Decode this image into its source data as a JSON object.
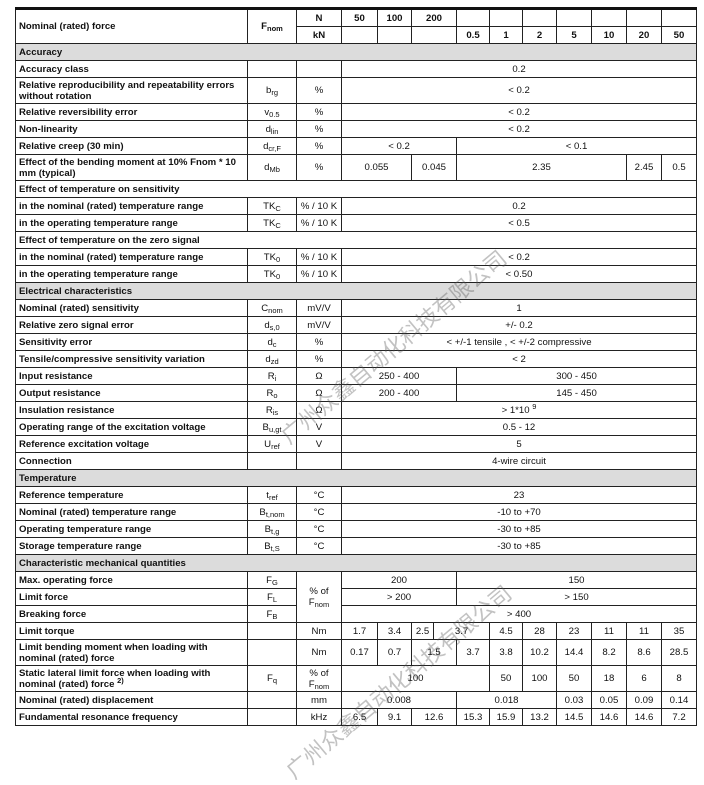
{
  "header": {
    "label": "Nominal (rated) force",
    "sym": "F",
    "sub": "nom",
    "unit_n": "N",
    "unit_kn": "kN",
    "n_values": [
      "50",
      "100",
      "200"
    ],
    "kn_values": [
      "0.5",
      "1",
      "2",
      "5",
      "10",
      "20",
      "50"
    ]
  },
  "watermark": "广州众鑫自动化科技有限公司",
  "sections": [
    {
      "title": "Accuracy",
      "rows": [
        {
          "label": "Accuracy class",
          "sym": "",
          "sub": "",
          "unit": "",
          "cells": [
            {
              "v": "0.2",
              "span": 11
            }
          ]
        },
        {
          "label": "Relative reproducibility and repeatability errors without rotation",
          "tall": true,
          "sym": "b",
          "sub": "rg",
          "unit": "%",
          "cells": [
            {
              "v": "< 0.2",
              "span": 11
            }
          ]
        },
        {
          "label": "Relative reversibility error",
          "sym": "v",
          "sub": "0.5",
          "unit": "%",
          "cells": [
            {
              "v": "< 0.2",
              "span": 11
            }
          ]
        },
        {
          "label": "Non-linearity",
          "sym": "d",
          "sub": "lin",
          "unit": "%",
          "cells": [
            {
              "v": "< 0.2",
              "span": 11
            }
          ]
        },
        {
          "label": "Relative creep (30 min)",
          "sym": "d",
          "sub": "cr,F",
          "unit": "%",
          "cells": [
            {
              "v": "< 0.2",
              "span": 4
            },
            {
              "v": "< 0.1",
              "span": 7
            }
          ]
        },
        {
          "label": "Effect of the bending moment at 10% Fnom * 10 mm (typical)",
          "tall": true,
          "sym": "d",
          "sub": "Mb",
          "unit": "%",
          "cells": [
            {
              "v": "0.055",
              "span": 2
            },
            {
              "v": "0.045",
              "span": 2
            },
            {
              "v": "2.35",
              "span": 5
            },
            {
              "v": "2.45",
              "span": 1
            },
            {
              "v": "0.5",
              "span": 1
            }
          ]
        }
      ]
    },
    {
      "title": "Effect of temperature on sensitivity",
      "plain": true,
      "rows": [
        {
          "label": "in the nominal (rated) temperature range",
          "sym": "TK",
          "sub": "C",
          "unit": "% / 10 K",
          "cells": [
            {
              "v": "0.2",
              "span": 11
            }
          ]
        },
        {
          "label": "in the operating temperature range",
          "sym": "TK",
          "sub": "C",
          "unit": "% / 10 K",
          "cells": [
            {
              "v": "< 0.5",
              "span": 11
            }
          ]
        }
      ]
    },
    {
      "title": "Effect of temperature on the zero signal",
      "plain": true,
      "rows": [
        {
          "label": "in the nominal (rated) temperature range",
          "sym": "TK",
          "sub": "0",
          "unit": "% / 10 K",
          "cells": [
            {
              "v": "< 0.2",
              "span": 11
            }
          ]
        },
        {
          "label": "in the operating temperature range",
          "sym": "TK",
          "sub": "0",
          "unit": "% / 10 K",
          "cells": [
            {
              "v": "< 0.50",
              "span": 11
            }
          ]
        }
      ]
    },
    {
      "title": "Electrical characteristics",
      "rows": [
        {
          "label": "Nominal (rated) sensitivity",
          "sym": "C",
          "sub": "nom",
          "unit": "mV/V",
          "cells": [
            {
              "v": "1",
              "span": 11
            }
          ]
        },
        {
          "label": "Relative zero signal error",
          "sym": "d",
          "sub": "s,0",
          "unit": "mV/V",
          "cells": [
            {
              "v": "+/- 0.2",
              "span": 11
            }
          ]
        },
        {
          "label": "Sensitivity error",
          "sym": "d",
          "sub": "c",
          "unit": "%",
          "cells": [
            {
              "v": "< +/-1 tensile , < +/-2 compressive",
              "span": 11
            }
          ]
        },
        {
          "label": "Tensile/compressive sensitivity variation",
          "sym": "d",
          "sub": "zd",
          "unit": "%",
          "cells": [
            {
              "v": "< 2",
              "span": 11
            }
          ]
        },
        {
          "label": "Input resistance",
          "sym": "R",
          "sub": "i",
          "unit": "Ω",
          "cells": [
            {
              "v": "250 - 400",
              "span": 4
            },
            {
              "v": "300 - 450",
              "span": 7
            }
          ]
        },
        {
          "label": "Output resistance",
          "sym": "R",
          "sub": "o",
          "unit": "Ω",
          "cells": [
            {
              "v": "200 - 400",
              "span": 4
            },
            {
              "v": "145 - 450",
              "span": 7
            }
          ]
        },
        {
          "label": "Insulation resistance",
          "sym": "R",
          "sub": "is",
          "unit": "Ω",
          "cells": [
            {
              "v": "> 1*10",
              "sup": "9",
              "span": 11
            }
          ]
        },
        {
          "label": "Operating range of the excitation voltage",
          "sym": "B",
          "sub": "u,gt",
          "unit": "V",
          "cells": [
            {
              "v": "0.5 - 12",
              "span": 11
            }
          ]
        },
        {
          "label": "Reference excitation voltage",
          "sym": "U",
          "sub": "ref",
          "unit": "V",
          "cells": [
            {
              "v": "5",
              "span": 11
            }
          ]
        },
        {
          "label": "Connection",
          "sym": "",
          "sub": "",
          "unit": "",
          "cells": [
            {
              "v": "4-wire circuit",
              "span": 11
            }
          ]
        }
      ]
    },
    {
      "title": "Temperature",
      "rows": [
        {
          "label": "Reference temperature",
          "sym": "t",
          "sub": "ref",
          "unit": "°C",
          "cells": [
            {
              "v": "23",
              "span": 11
            }
          ]
        },
        {
          "label": "Nominal (rated) temperature range",
          "sym": "B",
          "sub": "t,nom",
          "unit": "°C",
          "cells": [
            {
              "v": "-10 to +70",
              "span": 11
            }
          ]
        },
        {
          "label": "Operating temperature range",
          "sym": "B",
          "sub": "t,g",
          "unit": "°C",
          "cells": [
            {
              "v": "-30 to +85",
              "span": 11
            }
          ]
        },
        {
          "label": "Storage temperature range",
          "sym": "B",
          "sub": "t,S",
          "unit": "°C",
          "cells": [
            {
              "v": "-30 to +85",
              "span": 11
            }
          ]
        }
      ]
    },
    {
      "title": "Characteristic mechanical quantities",
      "rows": [
        {
          "label": "Max. operating force",
          "sym": "F",
          "sub": "G",
          "unit": "% of",
          "unit_sub": "F",
          "unit_sub2": "nom",
          "unit_rowspan": 3,
          "cells": [
            {
              "v": "200",
              "span": 4
            },
            {
              "v": "150",
              "span": 7
            }
          ]
        },
        {
          "label": "Limit force",
          "sym": "F",
          "sub": "L",
          "unit_skip": true,
          "cells": [
            {
              "v": "> 200",
              "span": 4
            },
            {
              "v": "> 150",
              "span": 7
            }
          ]
        },
        {
          "label": "Breaking force",
          "sym": "F",
          "sub": "B",
          "unit_skip": true,
          "cells": [
            {
              "v": "> 400",
              "span": 11
            }
          ]
        },
        {
          "label": "Limit torque",
          "sym": "",
          "sub": "",
          "unit": "Nm",
          "cells": [
            {
              "v": "1.7",
              "span": 1
            },
            {
              "v": "3.4",
              "span": 1
            },
            {
              "v": "2.5",
              "span": 1
            },
            {
              "v": "3.7",
              "span": 2
            },
            {
              "v": "4.5",
              "span": 1
            },
            {
              "v": "28",
              "span": 1
            },
            {
              "v": "23",
              "span": 1
            },
            {
              "v": "11",
              "span": 1
            },
            {
              "v": "11",
              "span": 1
            },
            {
              "v": "35",
              "span": 1
            }
          ]
        },
        {
          "label": "Limit bending moment when loading with nominal (rated) force",
          "tall": true,
          "sym": "",
          "sub": "",
          "unit": "Nm",
          "cells": [
            {
              "v": "0.17",
              "span": 1
            },
            {
              "v": "0.7",
              "span": 1
            },
            {
              "v": "1.5",
              "span": 2
            },
            {
              "v": "3.7",
              "span": 1
            },
            {
              "v": "3.8",
              "span": 1
            },
            {
              "v": "10.2",
              "span": 1
            },
            {
              "v": "14.4",
              "span": 1
            },
            {
              "v": "8.2",
              "span": 1
            },
            {
              "v": "8.6",
              "span": 1
            },
            {
              "v": "28.5",
              "span": 1
            }
          ]
        },
        {
          "label": "Static lateral limit force when loading with nominal (rated) force",
          "label_sup": "2)",
          "tall": true,
          "sym": "F",
          "sub": "q",
          "unit": "% of",
          "unit_sub": "F",
          "unit_sub2": "nom",
          "cells": [
            {
              "v": "100",
              "span": 5
            },
            {
              "v": "50",
              "span": 1
            },
            {
              "v": "100",
              "span": 1
            },
            {
              "v": "50",
              "span": 1
            },
            {
              "v": "18",
              "span": 1
            },
            {
              "v": "6",
              "span": 1
            },
            {
              "v": "8",
              "span": 1
            }
          ]
        },
        {
          "label": "Nominal (rated) displacement",
          "sym": "",
          "sub": "",
          "unit": "mm",
          "cells": [
            {
              "v": "0.008",
              "span": 4
            },
            {
              "v": "0.018",
              "span": 3
            },
            {
              "v": "0.03",
              "span": 1
            },
            {
              "v": "0.05",
              "span": 1
            },
            {
              "v": "0.09",
              "span": 1
            },
            {
              "v": "0.14",
              "span": 1
            }
          ]
        },
        {
          "label": "Fundamental resonance frequency",
          "sym": "",
          "sub": "",
          "unit": "kHz",
          "cells": [
            {
              "v": "6.5",
              "span": 1
            },
            {
              "v": "9.1",
              "span": 1
            },
            {
              "v": "12.6",
              "span": 2
            },
            {
              "v": "15.3",
              "span": 1
            },
            {
              "v": "15.9",
              "span": 1
            },
            {
              "v": "13.2",
              "span": 1
            },
            {
              "v": "14.5",
              "span": 1
            },
            {
              "v": "14.6",
              "span": 1
            },
            {
              "v": "14.6",
              "span": 1
            },
            {
              "v": "7.2",
              "span": 1
            }
          ]
        }
      ]
    }
  ]
}
